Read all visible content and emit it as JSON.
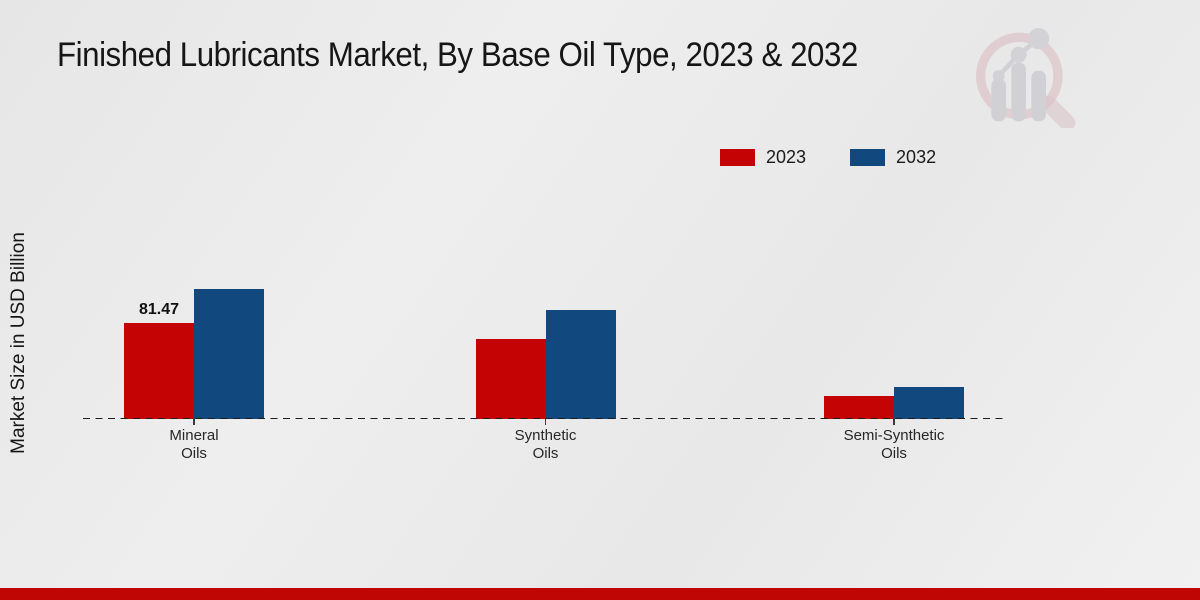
{
  "chart_data": {
    "type": "bar",
    "title": "Finished Lubricants Market, By Base Oil Type, 2023 & 2032",
    "ylabel": "Market Size in USD Billion",
    "xlabel": "",
    "categories": [
      "Mineral Oils",
      "Synthetic Oils",
      "Semi-Synthetic Oils"
    ],
    "series": [
      {
        "name": "2023",
        "color": "#c40404",
        "values": [
          81.47,
          67.7,
          19.1
        ]
      },
      {
        "name": "2032",
        "color": "#11497f",
        "values": [
          109.9,
          92.7,
          27.0
        ]
      }
    ],
    "data_labels": [
      {
        "series": "2023",
        "category": "Mineral Oils",
        "text": "81.47"
      }
    ],
    "axis": {
      "baseline_style": "dashed",
      "gridlines": false,
      "y_ticks_shown": false
    },
    "legend_position": "top-right",
    "legend_entries": [
      "2023",
      "2032"
    ]
  },
  "logo": {
    "icon": "magnifier-bar-chart-watermark"
  },
  "footer": {
    "accent_color": "#bf0604"
  }
}
